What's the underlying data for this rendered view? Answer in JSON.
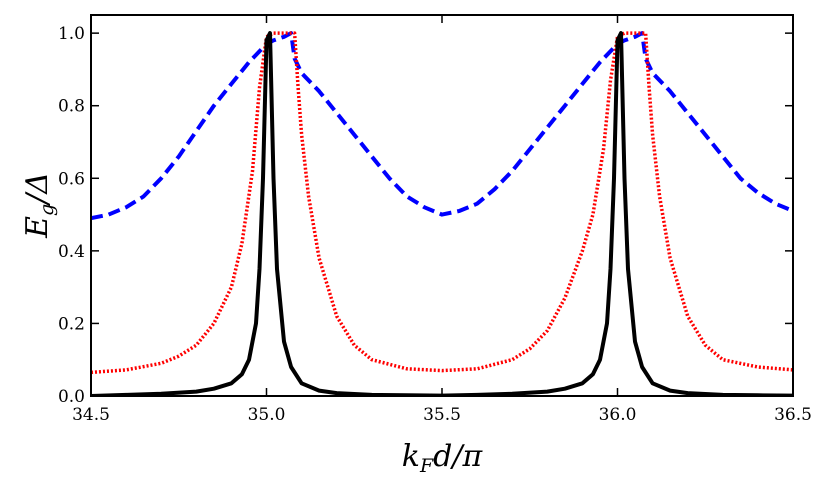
{
  "chart_data": {
    "type": "line",
    "title": "",
    "xlabel": "k_F d/π",
    "ylabel": "E_g/Δ",
    "xlabel_parts": {
      "k": "k",
      "sub": "F",
      "rest": "d/π"
    },
    "ylabel_parts": {
      "e": "E",
      "sub": "g",
      "rest": "/Δ"
    },
    "xlim": [
      34.5,
      36.5
    ],
    "ylim": [
      0.0,
      1.05
    ],
    "grid": false,
    "x_ticks": [
      34.5,
      35.0,
      35.5,
      36.0,
      36.5
    ],
    "x_tick_labels": [
      "34.5",
      "35.0",
      "35.5",
      "36.0",
      "36.5"
    ],
    "y_ticks": [
      0.0,
      0.2,
      0.4,
      0.6,
      0.8,
      1.0
    ],
    "y_tick_labels": [
      "0.0",
      "0.2",
      "0.4",
      "0.6",
      "0.8",
      "1.0"
    ],
    "series": [
      {
        "name": "dashed-blue",
        "color": "#0000ff",
        "style": "dashed",
        "x": [
          34.5,
          34.55,
          34.6,
          34.65,
          34.7,
          34.75,
          34.8,
          34.85,
          34.9,
          34.95,
          35.0,
          35.02,
          35.05,
          35.07,
          35.08,
          35.1,
          35.15,
          35.2,
          35.25,
          35.3,
          35.35,
          35.4,
          35.45,
          35.5,
          35.55,
          35.6,
          35.65,
          35.7,
          35.75,
          35.8,
          35.85,
          35.9,
          35.95,
          36.0,
          36.02,
          36.05,
          36.07,
          36.08,
          36.1,
          36.15,
          36.2,
          36.25,
          36.3,
          36.35,
          36.4,
          36.45,
          36.5
        ],
        "y": [
          0.49,
          0.5,
          0.52,
          0.55,
          0.6,
          0.66,
          0.73,
          0.8,
          0.86,
          0.92,
          0.97,
          0.98,
          0.99,
          1.0,
          0.93,
          0.89,
          0.84,
          0.78,
          0.72,
          0.66,
          0.6,
          0.55,
          0.52,
          0.5,
          0.51,
          0.53,
          0.57,
          0.62,
          0.68,
          0.74,
          0.8,
          0.86,
          0.92,
          0.97,
          0.98,
          0.99,
          1.0,
          0.93,
          0.89,
          0.84,
          0.78,
          0.72,
          0.66,
          0.6,
          0.56,
          0.53,
          0.51
        ]
      },
      {
        "name": "dotted-red",
        "color": "#ff0000",
        "style": "dotted",
        "x": [
          34.5,
          34.6,
          34.7,
          34.75,
          34.8,
          34.85,
          34.9,
          34.93,
          34.96,
          34.98,
          35.0,
          35.02,
          35.05,
          35.07,
          35.08,
          35.09,
          35.1,
          35.12,
          35.15,
          35.2,
          35.25,
          35.3,
          35.4,
          35.5,
          35.6,
          35.7,
          35.75,
          35.8,
          35.85,
          35.9,
          35.93,
          35.96,
          35.98,
          36.0,
          36.02,
          36.05,
          36.07,
          36.08,
          36.09,
          36.1,
          36.12,
          36.15,
          36.2,
          36.25,
          36.3,
          36.4,
          36.5
        ],
        "y": [
          0.065,
          0.072,
          0.09,
          0.11,
          0.14,
          0.2,
          0.3,
          0.42,
          0.62,
          0.85,
          0.99,
          1.0,
          1.0,
          1.0,
          1.0,
          0.85,
          0.72,
          0.55,
          0.38,
          0.22,
          0.14,
          0.1,
          0.075,
          0.07,
          0.075,
          0.1,
          0.13,
          0.18,
          0.27,
          0.4,
          0.5,
          0.68,
          0.87,
          0.99,
          1.0,
          1.0,
          1.0,
          1.0,
          0.85,
          0.72,
          0.55,
          0.38,
          0.22,
          0.14,
          0.1,
          0.08,
          0.072
        ]
      },
      {
        "name": "solid-black",
        "color": "#000000",
        "style": "solid",
        "x": [
          34.5,
          34.6,
          34.7,
          34.8,
          34.85,
          34.9,
          34.93,
          34.95,
          34.97,
          34.98,
          34.99,
          35.0,
          35.01,
          35.02,
          35.03,
          35.05,
          35.07,
          35.1,
          35.15,
          35.2,
          35.3,
          35.4,
          35.5,
          35.6,
          35.7,
          35.8,
          35.85,
          35.9,
          35.93,
          35.95,
          35.97,
          35.98,
          35.99,
          36.0,
          36.01,
          36.02,
          36.03,
          36.05,
          36.07,
          36.1,
          36.15,
          36.2,
          36.3,
          36.4,
          36.5
        ],
        "y": [
          0.0,
          0.003,
          0.006,
          0.012,
          0.02,
          0.035,
          0.06,
          0.1,
          0.2,
          0.35,
          0.6,
          0.98,
          1.0,
          0.6,
          0.35,
          0.15,
          0.08,
          0.035,
          0.015,
          0.008,
          0.003,
          0.002,
          0.001,
          0.003,
          0.006,
          0.012,
          0.02,
          0.035,
          0.06,
          0.1,
          0.2,
          0.35,
          0.6,
          0.98,
          1.0,
          0.6,
          0.35,
          0.15,
          0.08,
          0.035,
          0.015,
          0.008,
          0.003,
          0.002,
          0.001
        ]
      }
    ]
  }
}
